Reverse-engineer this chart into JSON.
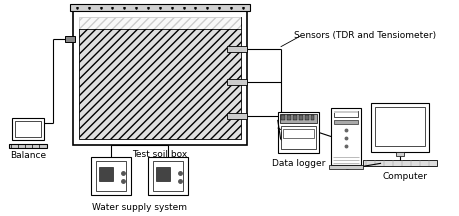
{
  "bg_color": "#ffffff",
  "line_color": "#000000",
  "labels": {
    "balance": "Balance",
    "soil_box": "Test soil box",
    "sensors": "Sensors (TDR and Tensiometer)",
    "water_supply": "Water supply system",
    "data_logger": "Data logger",
    "computer": "Computer"
  },
  "font_size": 6.5
}
